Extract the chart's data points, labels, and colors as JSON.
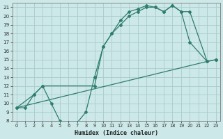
{
  "xlabel": "Humidex (Indice chaleur)",
  "bg_color": "#cce8e8",
  "line_color": "#2e7d6e",
  "grid_color": "#aacccc",
  "xlim": [
    -0.5,
    23.5
  ],
  "ylim": [
    8,
    21.5
  ],
  "yticks": [
    8,
    9,
    10,
    11,
    12,
    13,
    14,
    15,
    16,
    17,
    18,
    19,
    20,
    21
  ],
  "xticks": [
    0,
    1,
    2,
    3,
    4,
    5,
    6,
    7,
    8,
    9,
    10,
    11,
    12,
    13,
    14,
    15,
    16,
    17,
    18,
    19,
    20,
    21,
    22,
    23
  ],
  "line1_x": [
    0,
    1,
    2,
    3,
    4,
    5,
    6,
    7,
    8,
    9,
    10,
    11,
    12,
    13,
    14,
    15,
    16,
    17,
    18,
    19,
    20,
    22,
    23
  ],
  "line1_y": [
    9.5,
    9.5,
    11,
    12,
    10,
    8,
    7.8,
    7.8,
    9,
    13,
    16.5,
    18,
    19.5,
    20.5,
    20.8,
    21.2,
    21,
    20.5,
    21.2,
    20.5,
    17,
    14.8,
    15.0
  ],
  "line2_x": [
    0,
    2,
    3,
    9,
    10,
    11,
    12,
    13,
    14,
    15,
    16,
    17,
    18,
    19,
    20,
    22,
    23
  ],
  "line2_y": [
    9.5,
    11,
    12,
    12,
    16.5,
    18,
    19,
    20,
    20.5,
    21.0,
    21.0,
    20.5,
    21.2,
    20.5,
    20.5,
    14.8,
    15.0
  ],
  "line3_x": [
    0,
    22
  ],
  "line3_y": [
    9.5,
    14.8
  ]
}
